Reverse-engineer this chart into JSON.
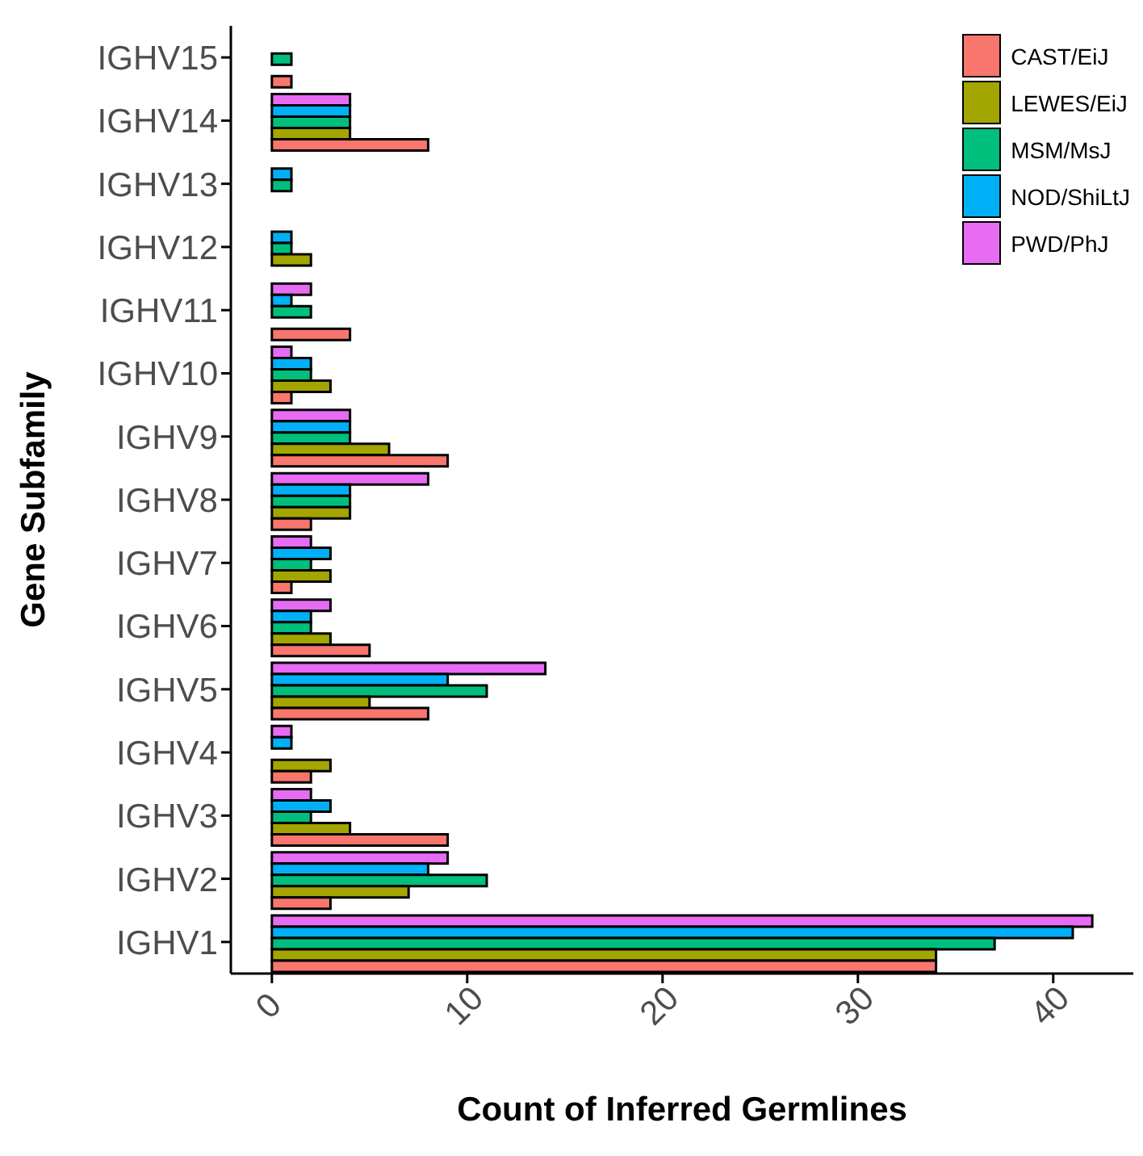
{
  "chart_data": {
    "type": "bar",
    "orientation": "horizontal",
    "xlabel": "Count of Inferred Germlines",
    "ylabel": "Gene Subfamily",
    "categories": [
      "IGHV15",
      "IGHV14",
      "IGHV13",
      "IGHV12",
      "IGHV11",
      "IGHV10",
      "IGHV9",
      "IGHV8",
      "IGHV7",
      "IGHV6",
      "IGHV5",
      "IGHV4",
      "IGHV3",
      "IGHV2",
      "IGHV1"
    ],
    "series": [
      {
        "name": "CAST/EiJ",
        "color": "#f8766d",
        "values": [
          1,
          8,
          0,
          0,
          4,
          1,
          9,
          2,
          1,
          5,
          8,
          2,
          9,
          3,
          34
        ]
      },
      {
        "name": "LEWES/EiJ",
        "color": "#a3a500",
        "values": [
          0,
          4,
          0,
          2,
          0,
          3,
          6,
          4,
          3,
          3,
          5,
          3,
          4,
          7,
          34
        ]
      },
      {
        "name": "MSM/MsJ",
        "color": "#00bf7d",
        "values": [
          1,
          4,
          1,
          1,
          2,
          2,
          4,
          4,
          2,
          2,
          11,
          0,
          2,
          11,
          37
        ]
      },
      {
        "name": "NOD/ShiLtJ",
        "color": "#00b0f6",
        "values": [
          0,
          4,
          1,
          1,
          1,
          2,
          4,
          4,
          3,
          2,
          9,
          1,
          3,
          8,
          41
        ]
      },
      {
        "name": "PWD/PhJ",
        "color": "#e76bf3",
        "values": [
          0,
          4,
          0,
          0,
          2,
          1,
          4,
          8,
          2,
          3,
          14,
          1,
          2,
          9,
          42
        ]
      }
    ],
    "xlim": [
      -2.1,
      44.1
    ],
    "xticks": [
      0,
      10,
      20,
      30,
      40
    ],
    "grid": false,
    "legend": "top right"
  }
}
